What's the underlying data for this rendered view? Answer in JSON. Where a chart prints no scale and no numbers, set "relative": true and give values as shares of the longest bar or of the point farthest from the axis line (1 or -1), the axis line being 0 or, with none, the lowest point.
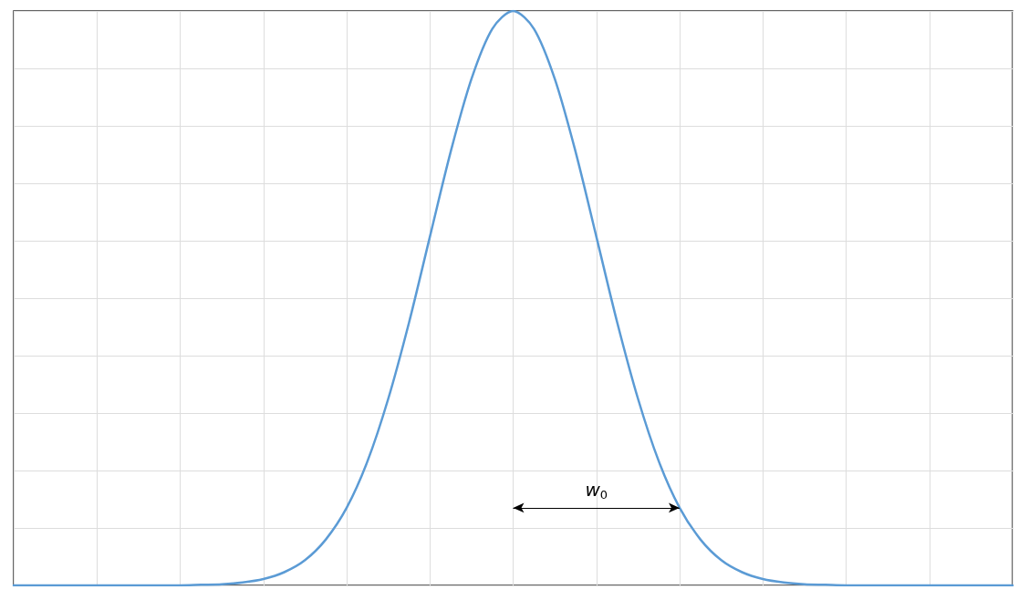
{
  "chart_data": {
    "type": "line",
    "relative": true,
    "grid": true,
    "marker": "none",
    "line_style": "solid",
    "categories": [
      null,
      null,
      null,
      null,
      null,
      null,
      null,
      null,
      null,
      null,
      null,
      null,
      null,
      null,
      null,
      null,
      null,
      null,
      null,
      null,
      null,
      null,
      null,
      null,
      null,
      null,
      null,
      null,
      null,
      null,
      null,
      null,
      null,
      null,
      null,
      null,
      null,
      null,
      null,
      null,
      null,
      null,
      null,
      null,
      null,
      null,
      null,
      null,
      null
    ],
    "series": [
      {
        "color": "#5b9bd5",
        "values": [
          0,
          0,
          0,
          0,
          0,
          0,
          0,
          0,
          0,
          0.001,
          0.002,
          0.005,
          0.011,
          0.023,
          0.044,
          0.08,
          0.135,
          0.216,
          0.325,
          0.458,
          0.607,
          0.755,
          0.882,
          0.969,
          1,
          0.969,
          0.882,
          0.755,
          0.607,
          0.458,
          0.325,
          0.216,
          0.135,
          0.08,
          0.044,
          0.023,
          0.011,
          0.005,
          0.002,
          0.001,
          0,
          0,
          0,
          0,
          0,
          0,
          0,
          0,
          0
        ]
      }
    ],
    "annotations": [
      "w$_{0}$"
    ]
  }
}
